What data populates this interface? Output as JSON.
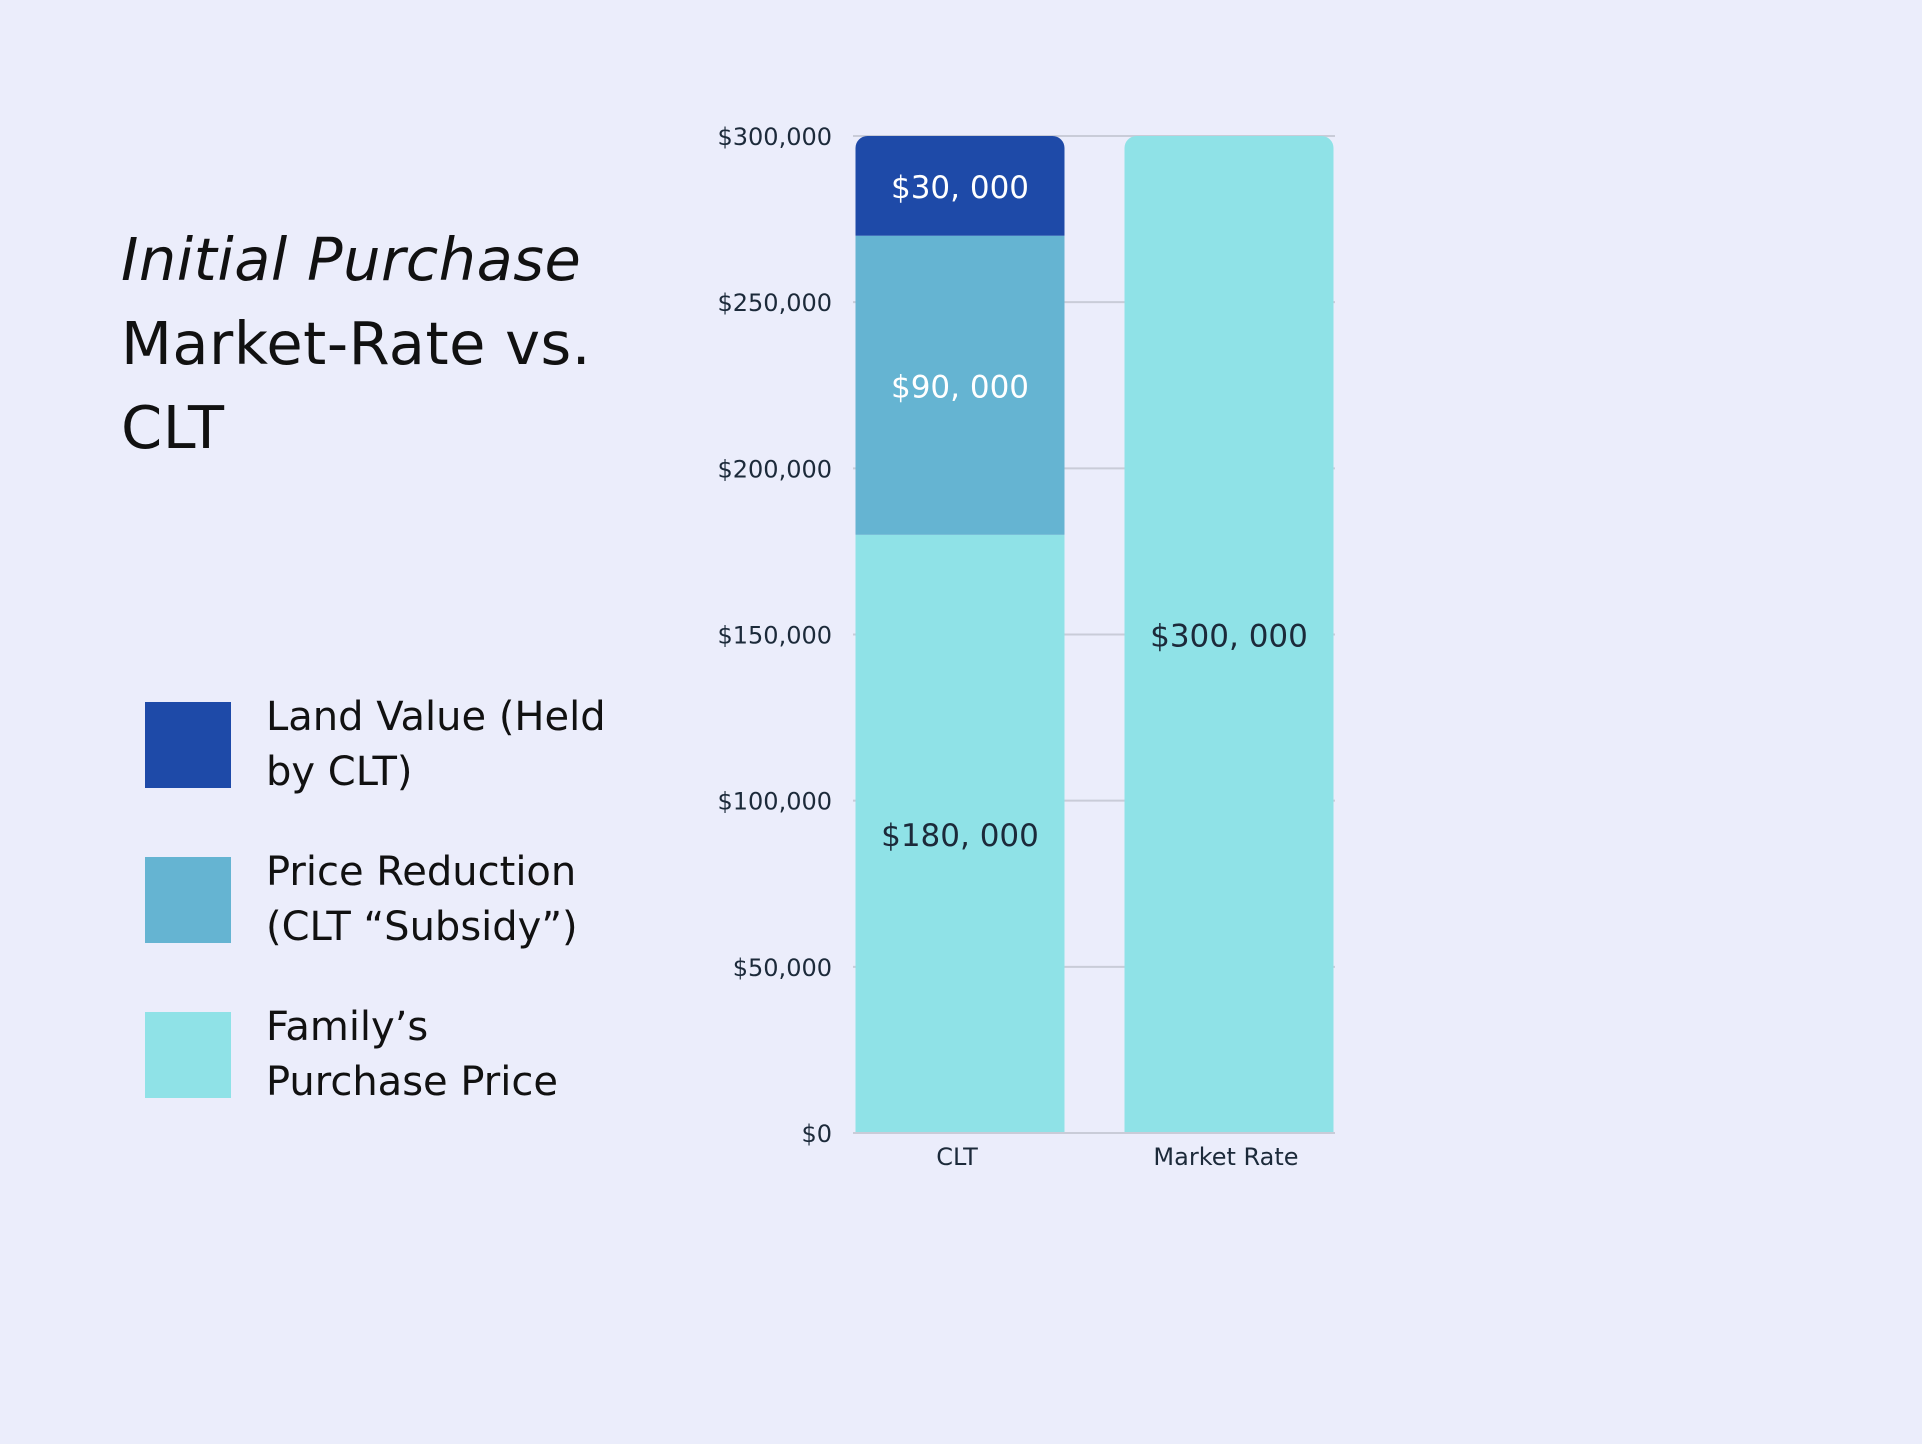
{
  "title": {
    "line1": "Initial Purchase",
    "line2": "Market-Rate vs.",
    "line3": "CLT"
  },
  "legend": [
    {
      "label": "Land Value (Held\nby CLT)",
      "color": "#1e4aa8"
    },
    {
      "label": "Price Reduction\n(CLT “Subsidy”)",
      "color": "#65b4d2"
    },
    {
      "label": "Family’s\nPurchase Price",
      "color": "#8fe2e7"
    }
  ],
  "chart_data": {
    "type": "bar",
    "stacked": true,
    "categories": [
      "CLT",
      "Market Rate"
    ],
    "series": [
      {
        "name": "Family’s Purchase Price",
        "color": "#8fe2e7",
        "values": [
          180000,
          300000
        ],
        "data_labels": [
          "$180, 000",
          "$300, 000"
        ],
        "label_color": "#1c2a3a"
      },
      {
        "name": "Price Reduction (CLT “Subsidy”)",
        "color": "#65b4d2",
        "values": [
          90000,
          0
        ],
        "data_labels": [
          "$90, 000",
          ""
        ],
        "label_color": "#ffffff"
      },
      {
        "name": "Land Value (Held by CLT)",
        "color": "#1e4aa8",
        "values": [
          30000,
          0
        ],
        "data_labels": [
          "$30, 000",
          ""
        ],
        "label_color": "#ffffff"
      }
    ],
    "y_ticks": [
      0,
      50000,
      100000,
      150000,
      200000,
      250000,
      300000
    ],
    "y_tick_labels": [
      "$0",
      "$50,000",
      "$100,000",
      "$150,000",
      "$200,000",
      "$250,000",
      "$300,000"
    ],
    "ylim": [
      0,
      300000
    ],
    "grid": true,
    "grid_color": "#c9ccd8",
    "legend_position": "left"
  }
}
